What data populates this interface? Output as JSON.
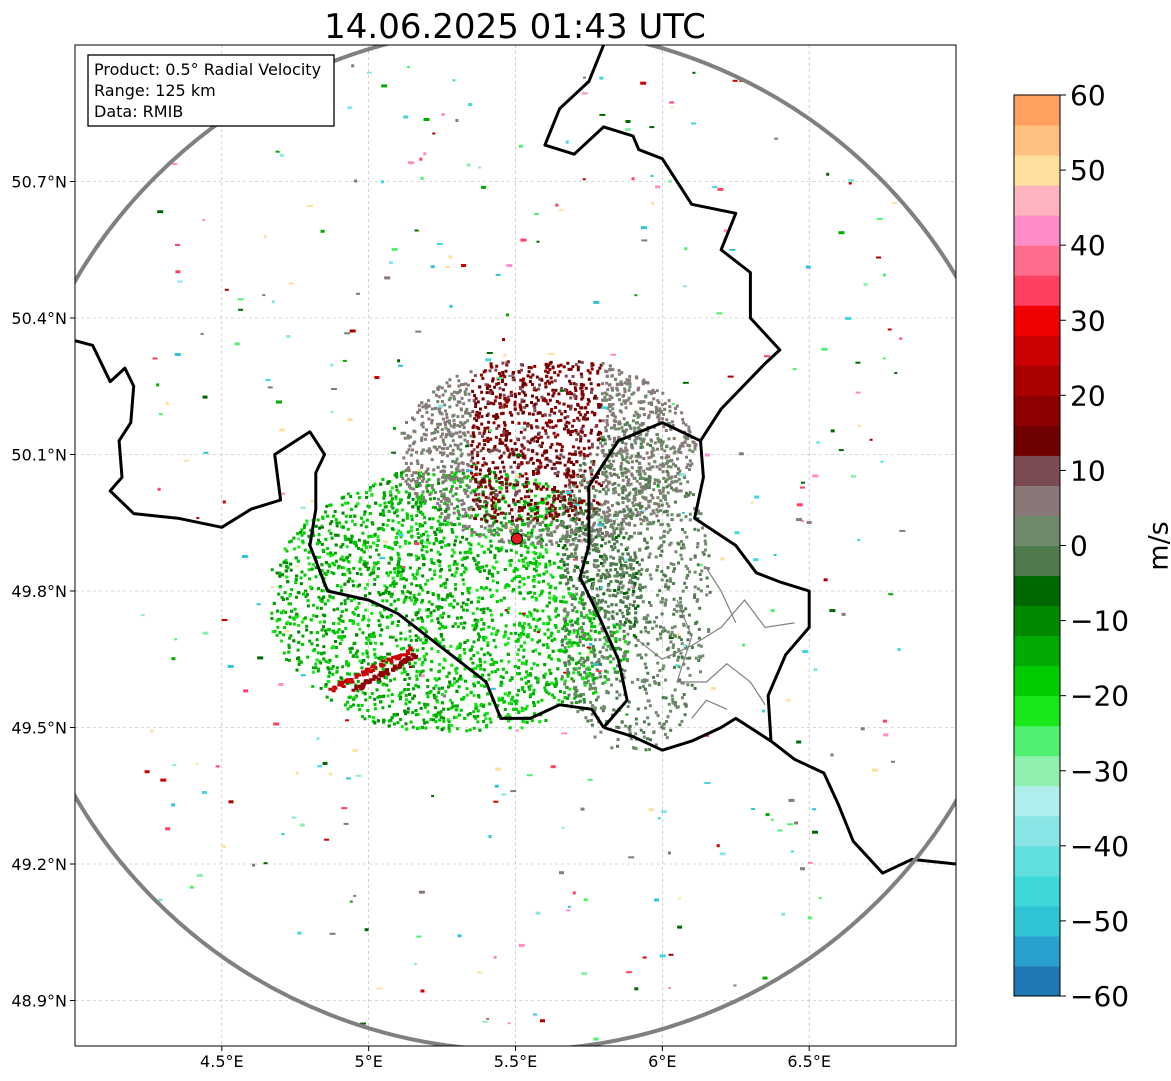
{
  "title": "14.06.2025 01:43 UTC",
  "info_box": {
    "product": "Product: 0.5° Radial Velocity",
    "range": "Range: 125 km",
    "source": "Data: RMIB"
  },
  "axes": {
    "lon_extent": [
      4.0,
      7.0
    ],
    "lat_extent": [
      48.8,
      51.0
    ],
    "x_ticks": [
      {
        "value": 4.5,
        "label": "4.5°E"
      },
      {
        "value": 5.0,
        "label": "5°E"
      },
      {
        "value": 5.5,
        "label": "5.5°E"
      },
      {
        "value": 6.0,
        "label": "6°E"
      },
      {
        "value": 6.5,
        "label": "6.5°E"
      }
    ],
    "y_ticks": [
      {
        "value": 48.9,
        "label": "48.9°N"
      },
      {
        "value": 49.2,
        "label": "49.2°N"
      },
      {
        "value": 49.5,
        "label": "49.5°N"
      },
      {
        "value": 49.8,
        "label": "49.8°N"
      },
      {
        "value": 50.1,
        "label": "50.1°N"
      },
      {
        "value": 50.4,
        "label": "50.4°N"
      },
      {
        "value": 50.7,
        "label": "50.7°N"
      }
    ],
    "grid": true
  },
  "radar": {
    "lon": 5.505,
    "lat": 49.915,
    "range_km": 125,
    "marker_color": "#e41a1c",
    "ring_color": "#808080"
  },
  "colorbar": {
    "label": "m/s",
    "min": -60,
    "max": 60,
    "ticks": [
      {
        "value": 60,
        "label": "60"
      },
      {
        "value": 50,
        "label": "50"
      },
      {
        "value": 40,
        "label": "40"
      },
      {
        "value": 30,
        "label": "30"
      },
      {
        "value": 20,
        "label": "20"
      },
      {
        "value": 10,
        "label": "10"
      },
      {
        "value": 0,
        "label": "0"
      },
      {
        "value": -10,
        "label": "−10"
      },
      {
        "value": -20,
        "label": "−20"
      },
      {
        "value": -30,
        "label": "−30"
      },
      {
        "value": -40,
        "label": "−40"
      },
      {
        "value": -50,
        "label": "−50"
      },
      {
        "value": -60,
        "label": "−60"
      }
    ],
    "colors": [
      {
        "value": -60,
        "color": "#1f78b4"
      },
      {
        "value": -56,
        "color": "#2aa0cc"
      },
      {
        "value": -52,
        "color": "#2ec4d4"
      },
      {
        "value": -48,
        "color": "#3ed8d8"
      },
      {
        "value": -44,
        "color": "#5fe0de"
      },
      {
        "value": -40,
        "color": "#8ae6e6"
      },
      {
        "value": -36,
        "color": "#b0eeee"
      },
      {
        "value": -32,
        "color": "#90f0b0"
      },
      {
        "value": -28,
        "color": "#50f070"
      },
      {
        "value": -24,
        "color": "#18e818"
      },
      {
        "value": -20,
        "color": "#00cc00"
      },
      {
        "value": -16,
        "color": "#00aa00"
      },
      {
        "value": -12,
        "color": "#008a00"
      },
      {
        "value": -8,
        "color": "#006800"
      },
      {
        "value": -4,
        "color": "#4e7a4e"
      },
      {
        "value": 0,
        "color": "#6e8a6a"
      },
      {
        "value": 4,
        "color": "#887878"
      },
      {
        "value": 8,
        "color": "#7c4a52"
      },
      {
        "value": 12,
        "color": "#700000"
      },
      {
        "value": 16,
        "color": "#8c0000"
      },
      {
        "value": 20,
        "color": "#aa0000"
      },
      {
        "value": 24,
        "color": "#cc0000"
      },
      {
        "value": 28,
        "color": "#f00000"
      },
      {
        "value": 32,
        "color": "#ff4060"
      },
      {
        "value": 36,
        "color": "#ff6c8c"
      },
      {
        "value": 40,
        "color": "#ff8cc8"
      },
      {
        "value": 44,
        "color": "#ffb4c0"
      },
      {
        "value": 48,
        "color": "#ffe09c"
      },
      {
        "value": 52,
        "color": "#ffc080"
      },
      {
        "value": 56,
        "color": "#ffa060"
      }
    ]
  },
  "borders": {
    "national": [
      [
        [
          4.0,
          50.35
        ],
        [
          4.06,
          50.34
        ],
        [
          4.12,
          50.26
        ],
        [
          4.17,
          50.29
        ],
        [
          4.2,
          50.25
        ],
        [
          4.19,
          50.17
        ],
        [
          4.15,
          50.13
        ],
        [
          4.16,
          50.05
        ],
        [
          4.12,
          50.02
        ],
        [
          4.2,
          49.97
        ],
        [
          4.35,
          49.96
        ],
        [
          4.5,
          49.94
        ],
        [
          4.6,
          49.98
        ],
        [
          4.7,
          50.0
        ],
        [
          4.68,
          50.1
        ],
        [
          4.8,
          50.15
        ],
        [
          4.85,
          50.1
        ],
        [
          4.82,
          50.06
        ],
        [
          4.82,
          49.98
        ],
        [
          4.8,
          49.9
        ],
        [
          4.86,
          49.8
        ],
        [
          5.0,
          49.78
        ],
        [
          5.1,
          49.75
        ],
        [
          5.2,
          49.7
        ],
        [
          5.3,
          49.65
        ],
        [
          5.4,
          49.6
        ],
        [
          5.45,
          49.52
        ],
        [
          5.55,
          49.52
        ],
        [
          5.65,
          49.55
        ],
        [
          5.76,
          49.54
        ],
        [
          5.8,
          49.5
        ]
      ],
      [
        [
          5.8,
          49.5
        ],
        [
          5.9,
          49.48
        ],
        [
          6.0,
          49.45
        ],
        [
          6.1,
          49.47
        ],
        [
          6.2,
          49.5
        ],
        [
          6.25,
          49.52
        ],
        [
          6.37,
          49.47
        ],
        [
          6.45,
          49.43
        ],
        [
          6.55,
          49.4
        ],
        [
          6.6,
          49.33
        ],
        [
          6.65,
          49.25
        ],
        [
          6.75,
          49.18
        ],
        [
          6.85,
          49.21
        ],
        [
          7.0,
          49.2
        ]
      ],
      [
        [
          5.8,
          49.5
        ],
        [
          5.88,
          49.56
        ],
        [
          5.85,
          49.65
        ],
        [
          5.78,
          49.75
        ],
        [
          5.72,
          49.83
        ],
        [
          5.75,
          49.9
        ],
        [
          5.75,
          50.03
        ],
        [
          5.85,
          50.13
        ],
        [
          6.0,
          50.17
        ],
        [
          6.13,
          50.13
        ],
        [
          6.14,
          50.05
        ],
        [
          6.11,
          49.96
        ],
        [
          6.25,
          49.9
        ],
        [
          6.32,
          49.84
        ],
        [
          6.4,
          49.82
        ],
        [
          6.5,
          49.8
        ],
        [
          6.5,
          49.72
        ],
        [
          6.42,
          49.66
        ],
        [
          6.36,
          49.57
        ],
        [
          6.37,
          49.47
        ]
      ],
      [
        [
          6.13,
          50.13
        ],
        [
          6.2,
          50.2
        ],
        [
          6.35,
          50.3
        ],
        [
          6.4,
          50.33
        ],
        [
          6.3,
          50.4
        ],
        [
          6.3,
          50.5
        ],
        [
          6.2,
          50.55
        ],
        [
          6.25,
          50.63
        ],
        [
          6.1,
          50.65
        ],
        [
          6.0,
          50.75
        ],
        [
          5.92,
          50.77
        ],
        [
          5.9,
          50.8
        ],
        [
          5.8,
          50.82
        ],
        [
          5.7,
          50.76
        ],
        [
          5.6,
          50.78
        ],
        [
          5.65,
          50.86
        ],
        [
          5.75,
          50.92
        ],
        [
          5.8,
          51.0
        ]
      ]
    ],
    "regional": [
      [
        [
          5.9,
          49.7
        ],
        [
          6.0,
          49.65
        ],
        [
          6.1,
          49.68
        ],
        [
          6.2,
          49.72
        ],
        [
          6.28,
          49.78
        ],
        [
          6.35,
          49.72
        ],
        [
          6.45,
          49.73
        ]
      ],
      [
        [
          6.05,
          49.78
        ],
        [
          6.1,
          49.7
        ],
        [
          6.05,
          49.6
        ],
        [
          6.15,
          49.6
        ],
        [
          6.22,
          49.64
        ],
        [
          6.3,
          49.6
        ],
        [
          6.35,
          49.55
        ]
      ],
      [
        [
          6.15,
          49.85
        ],
        [
          6.2,
          49.8
        ],
        [
          6.25,
          49.73
        ]
      ],
      [
        [
          6.1,
          49.52
        ],
        [
          6.15,
          49.56
        ],
        [
          6.22,
          49.54
        ]
      ]
    ]
  }
}
